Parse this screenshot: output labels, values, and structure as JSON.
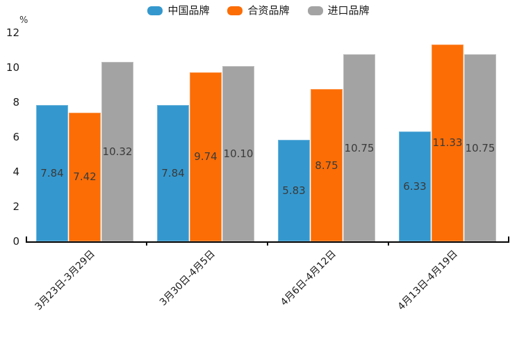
{
  "chart_data": {
    "type": "bar",
    "title": "",
    "ylabel": "%",
    "xlabel": "",
    "ylim": [
      0,
      12
    ],
    "yticks": [
      0,
      2,
      4,
      6,
      8,
      10,
      12
    ],
    "grid": false,
    "legend_position": "top",
    "value_label_decimals": 2,
    "categories": [
      "3月23日-3月29日",
      "3月30日-4月5日",
      "4月6日-4月12日",
      "4月13日-4月19日"
    ],
    "series": [
      {
        "name": "中国品牌",
        "color": "#3498CE",
        "values": [
          7.84,
          7.84,
          5.83,
          6.33
        ]
      },
      {
        "name": "合资品牌",
        "color": "#FC6D05",
        "values": [
          7.42,
          9.74,
          8.75,
          11.33
        ]
      },
      {
        "name": "进口品牌",
        "color": "#A3A3A3",
        "values": [
          10.32,
          10.1,
          10.75,
          10.75
        ]
      }
    ]
  },
  "colors": {
    "axis": "#000000",
    "tick_text": "#1a1a1a",
    "value_text": "#3a3a3a",
    "legend_text": "#1a1a1a",
    "background": "#ffffff"
  }
}
